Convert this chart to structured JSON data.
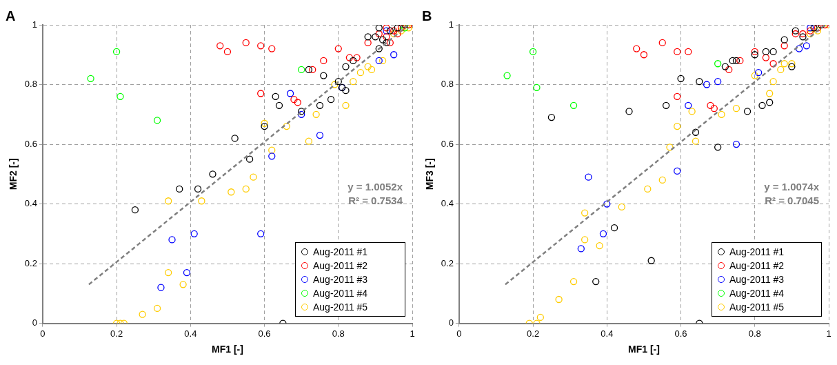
{
  "chart_data": [
    {
      "type": "scatter",
      "title": "A",
      "xlabel": "MF1 [-]",
      "ylabel": "MF2 [-]",
      "xlim": [
        0,
        1
      ],
      "ylim": [
        0,
        1
      ],
      "xticks": [
        0,
        0.2,
        0.4,
        0.6,
        0.8,
        1
      ],
      "yticks": [
        0,
        0.2,
        0.4,
        0.6,
        0.8,
        1
      ],
      "grid": true,
      "legend": "bottom right",
      "marker": "circle",
      "annotations": [
        "y = 1.0052x",
        "R² = 0.7534"
      ],
      "series": [
        {
          "name": "Aug-2011 #1",
          "color": "#000000",
          "x": [
            0.25,
            0.37,
            0.42,
            0.46,
            0.52,
            0.56,
            0.6,
            0.63,
            0.64,
            0.7,
            0.72,
            0.75,
            0.76,
            0.78,
            0.8,
            0.81,
            0.82,
            0.82,
            0.84,
            0.88,
            0.9,
            0.91,
            0.92,
            0.93,
            0.65,
            0.94,
            0.96,
            0.98,
            0.91
          ],
          "values": [
            0.38,
            0.45,
            0.45,
            0.5,
            0.62,
            0.55,
            0.66,
            0.76,
            0.73,
            0.71,
            0.85,
            0.73,
            0.83,
            0.75,
            0.81,
            0.79,
            0.78,
            0.86,
            0.88,
            0.96,
            0.96,
            0.92,
            0.95,
            0.94,
            0,
            0.98,
            0.99,
            1,
            0.99
          ]
        },
        {
          "name": "Aug-2011 #2",
          "color": "#ff0000",
          "x": [
            0.48,
            0.5,
            0.55,
            0.59,
            0.62,
            0.59,
            0.68,
            0.69,
            0.73,
            0.76,
            0.8,
            0.83,
            0.85,
            0.88,
            0.91,
            0.93,
            0.95,
            0.96,
            0.97,
            0.99,
            0.93,
            0.94
          ],
          "values": [
            0.93,
            0.91,
            0.94,
            0.93,
            0.92,
            0.77,
            0.75,
            0.74,
            0.85,
            0.88,
            0.92,
            0.89,
            0.89,
            0.94,
            0.97,
            0.96,
            0.98,
            0.97,
            0.99,
            1,
            0.99,
            0.94
          ]
        },
        {
          "name": "Aug-2011 #3",
          "color": "#0000ff",
          "x": [
            0.32,
            0.35,
            0.39,
            0.41,
            0.59,
            0.62,
            0.67,
            0.7,
            0.75,
            0.81,
            0.95,
            0.91,
            0.93
          ],
          "values": [
            0.12,
            0.28,
            0.17,
            0.3,
            0.3,
            0.56,
            0.77,
            0.7,
            0.63,
            0.79,
            0.9,
            0.88,
            0.98
          ]
        },
        {
          "name": "Aug-2011 #4",
          "color": "#00ff00",
          "x": [
            0.13,
            0.2,
            0.21,
            0.31,
            0.7,
            0.98
          ],
          "values": [
            0.82,
            0.91,
            0.76,
            0.68,
            0.85,
            0.99
          ]
        },
        {
          "name": "Aug-2011 #5",
          "color": "#ffcc00",
          "x": [
            0.2,
            0.21,
            0.22,
            0.27,
            0.31,
            0.34,
            0.38,
            0.34,
            0.43,
            0.51,
            0.55,
            0.57,
            0.6,
            0.62,
            0.66,
            0.72,
            0.74,
            0.79,
            0.82,
            0.84,
            0.86,
            0.88,
            0.89,
            0.92,
            0.95,
            0.97,
            0.99,
            1
          ],
          "values": [
            0,
            0,
            0,
            0.03,
            0.05,
            0.17,
            0.13,
            0.41,
            0.41,
            0.44,
            0.45,
            0.49,
            0.67,
            0.58,
            0.66,
            0.61,
            0.7,
            0.8,
            0.73,
            0.81,
            0.84,
            0.86,
            0.85,
            0.88,
            0.97,
            0.98,
            0.99,
            1
          ]
        },
        {
          "type": "line",
          "color": "#808080",
          "line_style": "dashed",
          "marker": "none",
          "x": [
            0.125,
            0.99
          ],
          "values": [
            0.13,
            1.0
          ]
        }
      ]
    },
    {
      "type": "scatter",
      "title": "B",
      "xlabel": "MF1 [-]",
      "ylabel": "MF3 [-]",
      "xlim": [
        0,
        1
      ],
      "ylim": [
        0,
        1
      ],
      "xticks": [
        0,
        0.2,
        0.4,
        0.6,
        0.8,
        1
      ],
      "yticks": [
        0,
        0.2,
        0.4,
        0.6,
        0.8,
        1
      ],
      "grid": true,
      "legend": "bottom right",
      "marker": "circle",
      "annotations": [
        "y = 1.0074x",
        "R² = 0.7045"
      ],
      "series": [
        {
          "name": "Aug-2011 #1",
          "color": "#000000",
          "x": [
            0.25,
            0.37,
            0.42,
            0.46,
            0.52,
            0.56,
            0.6,
            0.64,
            0.65,
            0.7,
            0.72,
            0.74,
            0.75,
            0.78,
            0.8,
            0.82,
            0.83,
            0.84,
            0.85,
            0.88,
            0.9,
            0.91,
            0.93,
            0.65,
            0.96,
            0.98
          ],
          "values": [
            0.69,
            0.14,
            0.32,
            0.71,
            0.21,
            0.73,
            0.82,
            0.64,
            0.81,
            0.59,
            0.86,
            0.88,
            0.88,
            0.71,
            0.9,
            0.73,
            0.91,
            0.74,
            0.91,
            0.95,
            0.86,
            0.98,
            0.96,
            0,
            0.99,
            1
          ]
        },
        {
          "name": "Aug-2011 #2",
          "color": "#ff0000",
          "x": [
            0.48,
            0.5,
            0.55,
            0.59,
            0.62,
            0.59,
            0.68,
            0.69,
            0.73,
            0.76,
            0.8,
            0.83,
            0.85,
            0.88,
            0.91,
            0.93,
            0.95,
            0.97,
            0.99
          ],
          "values": [
            0.92,
            0.9,
            0.94,
            0.91,
            0.91,
            0.76,
            0.73,
            0.72,
            0.85,
            0.88,
            0.91,
            0.89,
            0.87,
            0.93,
            0.97,
            0.97,
            0.98,
            0.99,
            1
          ]
        },
        {
          "name": "Aug-2011 #3",
          "color": "#0000ff",
          "x": [
            0.33,
            0.35,
            0.39,
            0.4,
            0.59,
            0.62,
            0.67,
            0.7,
            0.75,
            0.81,
            0.92,
            0.94,
            0.95
          ],
          "values": [
            0.25,
            0.49,
            0.3,
            0.4,
            0.51,
            0.73,
            0.8,
            0.81,
            0.6,
            0.84,
            0.92,
            0.93,
            0.99
          ]
        },
        {
          "name": "Aug-2011 #4",
          "color": "#00ff00",
          "x": [
            0.13,
            0.2,
            0.21,
            0.31,
            0.7
          ],
          "values": [
            0.83,
            0.91,
            0.79,
            0.73,
            0.87
          ]
        },
        {
          "name": "Aug-2011 #5",
          "color": "#ffcc00",
          "x": [
            0.19,
            0.21,
            0.22,
            0.27,
            0.31,
            0.34,
            0.34,
            0.38,
            0.44,
            0.51,
            0.55,
            0.57,
            0.59,
            0.63,
            0.64,
            0.71,
            0.75,
            0.8,
            0.84,
            0.85,
            0.87,
            0.88,
            0.9,
            0.95,
            0.97,
            1
          ],
          "values": [
            0,
            0,
            0.02,
            0.08,
            0.14,
            0.37,
            0.28,
            0.26,
            0.39,
            0.45,
            0.48,
            0.59,
            0.66,
            0.71,
            0.61,
            0.7,
            0.72,
            0.83,
            0.77,
            0.81,
            0.85,
            0.87,
            0.87,
            0.97,
            0.98,
            1
          ]
        },
        {
          "type": "line",
          "color": "#808080",
          "line_style": "dashed",
          "marker": "none",
          "x": [
            0.125,
            0.99
          ],
          "values": [
            0.13,
            1.0
          ]
        }
      ]
    }
  ]
}
